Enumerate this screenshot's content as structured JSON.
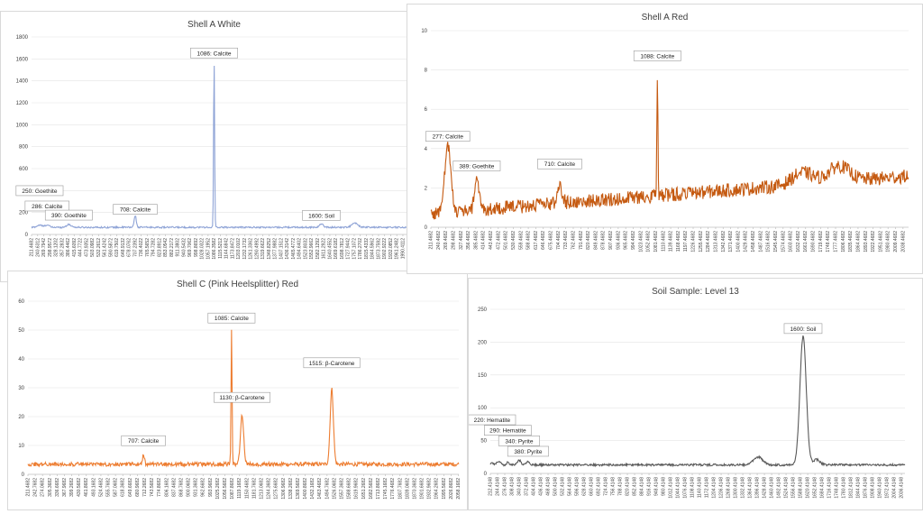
{
  "chart_data": [
    {
      "type": "line",
      "title": "Shell A White",
      "color": "#8ea3d6",
      "ylim": [
        0,
        1800
      ],
      "yticks": [
        0,
        200,
        400,
        600,
        800,
        1000,
        1200,
        1400,
        1600,
        1800
      ],
      "xlim": [
        211.4682,
        2051
      ],
      "xtick_start": 211.4682,
      "xtick_step": 29.163,
      "xtick_count": 64,
      "baseline": 65,
      "peaks": [
        [
          250,
          20,
          12
        ],
        [
          286,
          22,
          10
        ],
        [
          390,
          25,
          12
        ],
        [
          708,
          110,
          5
        ],
        [
          1086,
          1530,
          2.4
        ],
        [
          1600,
          28,
          10
        ],
        [
          1760,
          38,
          14
        ]
      ],
      "noise": 7,
      "annotations": [
        {
          "text": "250: Goethite",
          "x": 250,
          "y": 395
        },
        {
          "text": "286: Calcite",
          "x": 286,
          "y": 255
        },
        {
          "text": "390: Goethite",
          "x": 390,
          "y": 172
        },
        {
          "text": "708: Calcite",
          "x": 708,
          "y": 225
        },
        {
          "text": "1086: Calcite",
          "x": 1086,
          "y": 1650
        },
        {
          "text": "1600: Soil",
          "x": 1600,
          "y": 170
        }
      ]
    },
    {
      "type": "line",
      "title": "Shell A Red",
      "color": "#c55a11",
      "ylim": [
        0,
        10
      ],
      "yticks": [
        0,
        2,
        4,
        6,
        8,
        10
      ],
      "xlim": [
        211.4682,
        2060
      ],
      "xtick_start": 211.4682,
      "xtick_step": 29,
      "xtick_count": 64,
      "baseline": 0.7,
      "peaks": [
        [
          277,
          3.3,
          12
        ],
        [
          389,
          1.7,
          8
        ],
        [
          710,
          0.9,
          10
        ],
        [
          1088,
          6.2,
          2.2
        ],
        [
          1650,
          0.6,
          40
        ],
        [
          1790,
          0.8,
          40
        ]
      ],
      "noise": 0.35,
      "trend": 1.9,
      "annotations": [
        {
          "text": "277: Calcite",
          "x": 277,
          "y": 4.6
        },
        {
          "text": "389: Goethite",
          "x": 389,
          "y": 3.1
        },
        {
          "text": "710: Calcite",
          "x": 710,
          "y": 3.2
        },
        {
          "text": "1088: Calcite",
          "x": 1088,
          "y": 8.7
        }
      ]
    },
    {
      "type": "line",
      "title": "Shell C (Pink Heelsplitter) Red",
      "color": "#ed7d31",
      "ylim": [
        0,
        60
      ],
      "yticks": [
        0,
        10,
        20,
        30,
        40,
        50,
        60
      ],
      "xlim": [
        211.4682,
        2060
      ],
      "xtick_start": 211.4682,
      "xtick_step": 31.3,
      "xtick_count": 60,
      "baseline": 3.5,
      "peaks": [
        [
          707,
          3.5,
          4
        ],
        [
          1085,
          46,
          2.2
        ],
        [
          1130,
          17,
          7
        ],
        [
          1515,
          26,
          7
        ]
      ],
      "noise": 0.7,
      "annotations": [
        {
          "text": "707: Calcite",
          "x": 707,
          "y": 11.5
        },
        {
          "text": "1085: Calcite",
          "x": 1085,
          "y": 54
        },
        {
          "text": "1130: β-Carotene",
          "x": 1130,
          "y": 26.5
        },
        {
          "text": "1515: β-Carotene",
          "x": 1515,
          "y": 38.5
        }
      ]
    },
    {
      "type": "line",
      "title": "Soil Sample: Level 13",
      "color": "#595959",
      "ylim": [
        0,
        250
      ],
      "yticks": [
        0,
        50,
        100,
        150,
        200,
        250
      ],
      "xlim": [
        212.4148,
        2052
      ],
      "xtick_start": 212.4148,
      "xtick_step": 32,
      "xtick_count": 58,
      "baseline": 13,
      "peaks": [
        [
          220,
          3,
          5
        ],
        [
          250,
          6,
          8
        ],
        [
          290,
          4,
          6
        ],
        [
          340,
          7,
          8
        ],
        [
          380,
          5,
          8
        ],
        [
          1400,
          12,
          20
        ],
        [
          1600,
          196,
          14
        ],
        [
          1660,
          8,
          15
        ]
      ],
      "noise": 1.6,
      "annotations": [
        {
          "text": "1600: Soil",
          "x": 1600,
          "y": 220
        },
        {
          "text": "220: Hematite",
          "x": 220,
          "y": 81
        },
        {
          "text": "290: Hematite",
          "x": 290,
          "y": 65
        },
        {
          "text": "340: Pyrite",
          "x": 340,
          "y": 49
        },
        {
          "text": "380: Pyrite",
          "x": 380,
          "y": 33
        }
      ]
    }
  ]
}
